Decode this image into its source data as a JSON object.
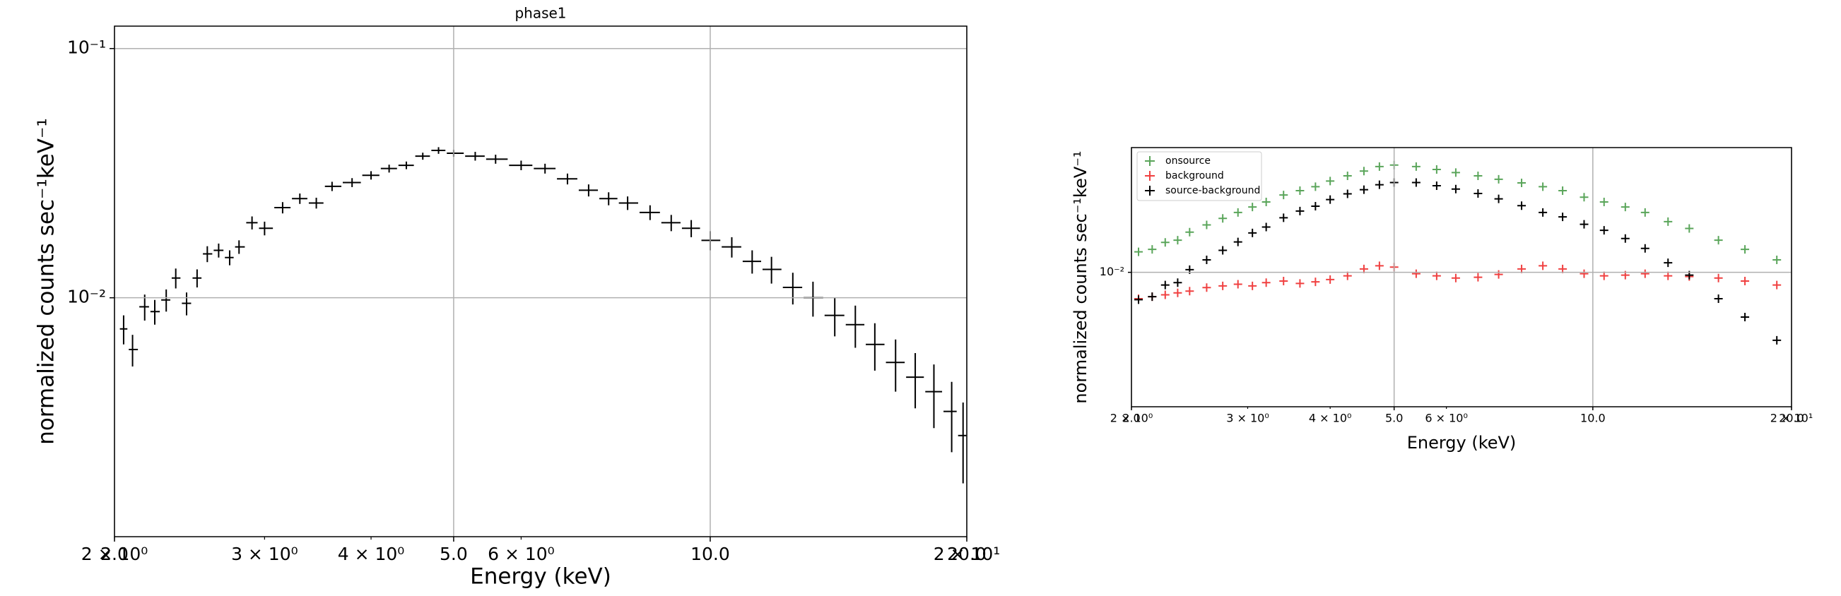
{
  "chart_data": [
    {
      "type": "errorbar",
      "title": "phase1",
      "xlabel": "Energy (keV)",
      "ylabel": "normalized counts sec⁻¹keV⁻¹",
      "xscale": "log",
      "yscale": "log",
      "grid": true,
      "color": "#000000",
      "xlim": [
        2,
        20
      ],
      "ylim": [
        0.0011,
        0.123
      ],
      "xticks": [
        {
          "value": 2,
          "label": "2.0"
        },
        {
          "value": 5,
          "label": "5.0"
        },
        {
          "value": 10,
          "label": "10.0"
        },
        {
          "value": 20,
          "label": "20.0"
        }
      ],
      "xminorticks": [
        {
          "value": 2,
          "label": "2 × 10⁰"
        },
        {
          "value": 3,
          "label": "3 × 10⁰"
        },
        {
          "value": 4,
          "label": "4 × 10⁰"
        },
        {
          "value": 6,
          "label": "6 × 10⁰"
        },
        {
          "value": 20,
          "label": "2 × 10¹"
        }
      ],
      "yticks": [
        {
          "value": 0.1,
          "label": "10⁻¹"
        },
        {
          "value": 0.01,
          "label": "10⁻²"
        }
      ],
      "x": [
        2.05,
        2.1,
        2.17,
        2.23,
        2.3,
        2.36,
        2.43,
        2.5,
        2.57,
        2.65,
        2.73,
        2.8,
        2.9,
        3.0,
        3.15,
        3.3,
        3.45,
        3.6,
        3.8,
        4.0,
        4.2,
        4.4,
        4.6,
        4.8,
        5.0,
        5.3,
        5.6,
        6.0,
        6.4,
        6.8,
        7.2,
        7.6,
        8.0,
        8.5,
        9.0,
        9.5,
        10.0,
        10.6,
        11.2,
        11.8,
        12.5,
        13.2,
        14.0,
        14.8,
        15.6,
        16.5,
        17.4,
        18.3,
        19.2,
        19.8
      ],
      "values": [
        0.0075,
        0.0062,
        0.0092,
        0.0088,
        0.0098,
        0.012,
        0.0095,
        0.012,
        0.015,
        0.0155,
        0.0145,
        0.016,
        0.02,
        0.019,
        0.023,
        0.025,
        0.024,
        0.028,
        0.029,
        0.031,
        0.033,
        0.034,
        0.037,
        0.039,
        0.038,
        0.037,
        0.036,
        0.034,
        0.033,
        0.03,
        0.027,
        0.025,
        0.024,
        0.022,
        0.02,
        0.019,
        0.017,
        0.016,
        0.014,
        0.013,
        0.011,
        0.01,
        0.0085,
        0.0078,
        0.0065,
        0.0055,
        0.0048,
        0.0042,
        0.0035,
        0.0028
      ],
      "yerr": [
        0.001,
        0.0009,
        0.0011,
        0.001,
        0.001,
        0.0011,
        0.001,
        0.001,
        0.0011,
        0.001,
        0.001,
        0.001,
        0.0012,
        0.0012,
        0.0012,
        0.0012,
        0.0012,
        0.0012,
        0.0012,
        0.0012,
        0.0012,
        0.0012,
        0.0012,
        0.0012,
        0.0012,
        0.0015,
        0.0015,
        0.0015,
        0.0015,
        0.0015,
        0.0015,
        0.0015,
        0.0015,
        0.0015,
        0.0015,
        0.0015,
        0.0015,
        0.0015,
        0.0015,
        0.0016,
        0.0016,
        0.0016,
        0.0015,
        0.0015,
        0.0014,
        0.0013,
        0.0012,
        0.0012,
        0.0011,
        0.001
      ]
    },
    {
      "type": "scatter",
      "xlabel": "Energy (keV)",
      "ylabel": "normalized counts sec⁻¹keV⁻¹",
      "xscale": "log",
      "yscale": "log",
      "grid": true,
      "legend": "upper left",
      "marker": "+",
      "xlim": [
        2,
        20
      ],
      "ylim": [
        0.0014,
        0.062
      ],
      "xticks": [
        {
          "value": 2,
          "label": "2.0"
        },
        {
          "value": 5,
          "label": "5.0"
        },
        {
          "value": 10,
          "label": "10.0"
        },
        {
          "value": 20,
          "label": "20.0"
        }
      ],
      "xminorticks": [
        {
          "value": 2,
          "label": "2 × 10⁰"
        },
        {
          "value": 3,
          "label": "3 × 10⁰"
        },
        {
          "value": 4,
          "label": "4 × 10⁰"
        },
        {
          "value": 6,
          "label": "6 × 10⁰"
        },
        {
          "value": 20,
          "label": "2 × 10¹"
        }
      ],
      "yticks": [
        {
          "value": 0.01,
          "label": "10⁻²"
        }
      ],
      "x": [
        2.05,
        2.15,
        2.25,
        2.35,
        2.45,
        2.6,
        2.75,
        2.9,
        3.05,
        3.2,
        3.4,
        3.6,
        3.8,
        4.0,
        4.25,
        4.5,
        4.75,
        5.0,
        5.4,
        5.8,
        6.2,
        6.7,
        7.2,
        7.8,
        8.4,
        9.0,
        9.7,
        10.4,
        11.2,
        12.0,
        13.0,
        14.0,
        15.5,
        17.0,
        19.0
      ],
      "series": [
        {
          "name": "onsource",
          "color": "#5aa55a",
          "values": [
            0.0135,
            0.014,
            0.0155,
            0.016,
            0.018,
            0.02,
            0.022,
            0.024,
            0.026,
            0.028,
            0.031,
            0.033,
            0.035,
            0.038,
            0.041,
            0.044,
            0.047,
            0.048,
            0.047,
            0.045,
            0.043,
            0.041,
            0.039,
            0.037,
            0.035,
            0.033,
            0.03,
            0.028,
            0.026,
            0.024,
            0.021,
            0.019,
            0.016,
            0.014,
            0.012
          ]
        },
        {
          "name": "background",
          "color": "#f04040",
          "values": [
            0.0068,
            0.007,
            0.0072,
            0.0074,
            0.0076,
            0.008,
            0.0082,
            0.0084,
            0.0082,
            0.0086,
            0.0088,
            0.0085,
            0.0087,
            0.009,
            0.0095,
            0.0105,
            0.011,
            0.0108,
            0.0098,
            0.0095,
            0.0092,
            0.0093,
            0.0097,
            0.0105,
            0.011,
            0.0105,
            0.0098,
            0.0095,
            0.0096,
            0.0098,
            0.0095,
            0.0094,
            0.0092,
            0.0088,
            0.0083
          ]
        },
        {
          "name": "source-background",
          "color": "#000000",
          "values": [
            0.0067,
            0.007,
            0.0083,
            0.0086,
            0.0104,
            0.012,
            0.0138,
            0.0156,
            0.0178,
            0.0194,
            0.0222,
            0.0245,
            0.0263,
            0.029,
            0.0315,
            0.0335,
            0.036,
            0.0372,
            0.0372,
            0.0355,
            0.0338,
            0.0317,
            0.0293,
            0.0265,
            0.024,
            0.0225,
            0.0202,
            0.0185,
            0.0164,
            0.0142,
            0.0115,
            0.0096,
            0.0068,
            0.0052,
            0.0037
          ]
        }
      ]
    }
  ]
}
